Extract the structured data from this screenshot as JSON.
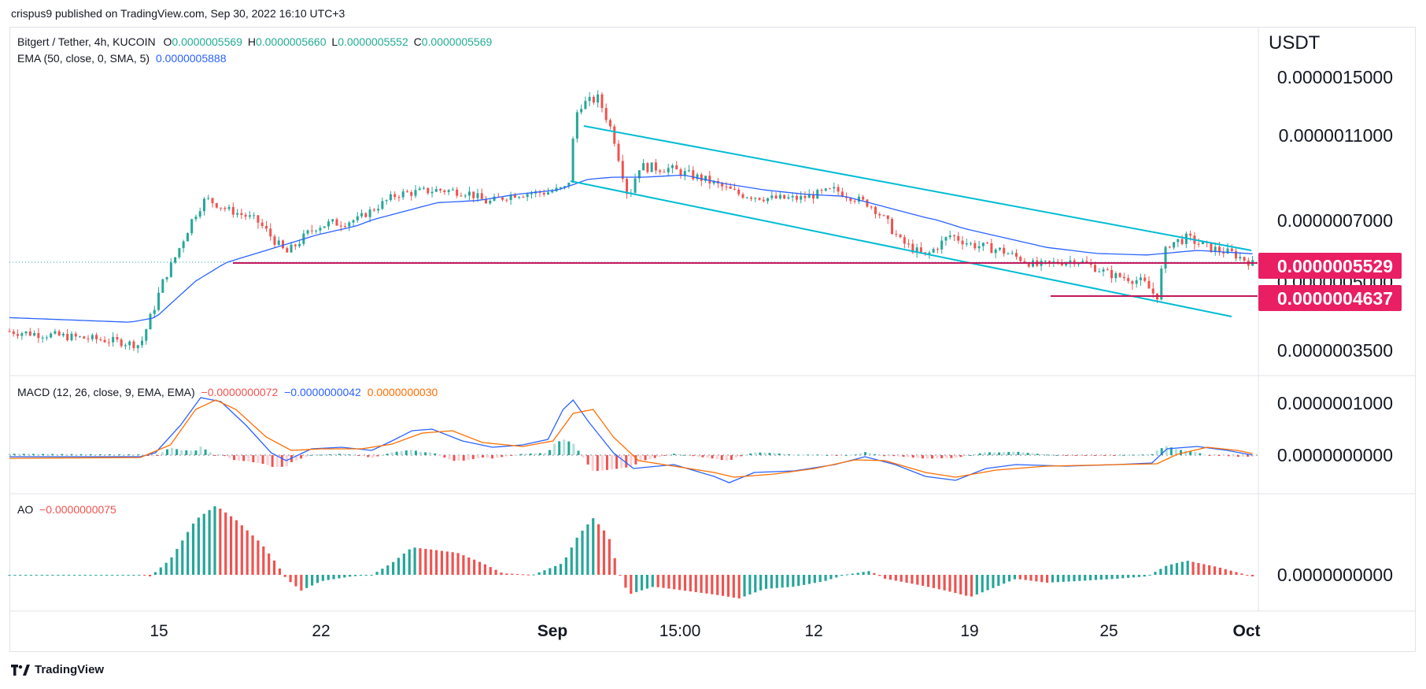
{
  "header": {
    "published_text": "crispus9 published on TradingView.com, Sep 30, 2022 16:10 UTC+3"
  },
  "footer": {
    "brand": "TradingView"
  },
  "legend": {
    "symbol": "Bitgert / Tether, 4h, KUCOIN",
    "o_label": "O",
    "o_value": "0.0000005569",
    "h_label": "H",
    "h_value": "0.0000005660",
    "l_label": "L",
    "l_value": "0.0000005552",
    "c_label": "C",
    "c_value": "0.0000005569",
    "ema_label": "EMA (50, close, 0, SMA, 5)",
    "ema_value": "0.0000005888",
    "macd_label": "MACD (12, 26, close, 9, EMA, EMA)",
    "macd_hist": "−0.0000000072",
    "macd_line": "−0.0000000042",
    "macd_signal": "0.0000000030",
    "ao_label": "AO",
    "ao_value": "−0.0000000075"
  },
  "colors": {
    "up": "#26a69a",
    "down": "#ef5350",
    "ema": "#2962ff",
    "channel": "#00bcd4",
    "hline": "#c2185b",
    "tag": "#e91e63",
    "macd_line": "#2962ff",
    "signal_line": "#ff6d00"
  },
  "chart_data": {
    "type": "candlestick",
    "title": "Bitgert / Tether, 4h, KUCOIN",
    "currency": "USDT",
    "y_tick_labels": [
      "0.0000015000",
      "0.0000011000",
      "0.0000007000",
      "0.0000005000",
      "0.0000003500"
    ],
    "x_tick_labels": [
      "15",
      "22",
      "Sep",
      "15:00",
      "12",
      "19",
      "25",
      "Oct"
    ],
    "price_tags": [
      "0.0000005529",
      "0.0000004637"
    ],
    "horizontal_levels": [
      5.529e-07,
      4.637e-07
    ],
    "price_path": [
      [
        0.0,
        3.9e-07
      ],
      [
        0.1,
        3.7e-07
      ],
      [
        0.13,
        3.6e-07
      ],
      [
        0.145,
        4.5e-07
      ],
      [
        0.165,
        5.8e-07
      ],
      [
        0.195,
        8e-07
      ],
      [
        0.215,
        7.5e-07
      ],
      [
        0.245,
        7e-07
      ],
      [
        0.275,
        5.9e-07
      ],
      [
        0.305,
        6.8e-07
      ],
      [
        0.345,
        7e-07
      ],
      [
        0.385,
        8.2e-07
      ],
      [
        0.425,
        8.4e-07
      ],
      [
        0.455,
        8.3e-07
      ],
      [
        0.475,
        7.8e-07
      ],
      [
        0.5,
        8.2e-07
      ],
      [
        0.535,
        8.3e-07
      ],
      [
        0.555,
        8.5e-07
      ],
      [
        0.565,
        1.3e-06
      ],
      [
        0.585,
        1.35e-06
      ],
      [
        0.6,
        1.1e-06
      ],
      [
        0.615,
        8e-07
      ],
      [
        0.625,
        9.5e-07
      ],
      [
        0.655,
        9.4e-07
      ],
      [
        0.69,
        8.9e-07
      ],
      [
        0.725,
        8.2e-07
      ],
      [
        0.755,
        8e-07
      ],
      [
        0.785,
        8e-07
      ],
      [
        0.82,
        8.4e-07
      ],
      [
        0.855,
        7.7e-07
      ],
      [
        0.885,
        6.3e-07
      ],
      [
        0.91,
        5.8e-07
      ],
      [
        0.935,
        6.5e-07
      ],
      [
        0.955,
        6.2e-07
      ],
      [
        0.985,
        6e-07
      ],
      [
        1.02,
        5.5e-07
      ],
      [
        1.06,
        5.7e-07
      ],
      [
        1.095,
        5.2e-07
      ],
      [
        1.125,
        5e-07
      ],
      [
        1.14,
        4.65e-07
      ],
      [
        1.15,
        6.2e-07
      ],
      [
        1.17,
        6.4e-07
      ],
      [
        1.19,
        6.1e-07
      ],
      [
        1.215,
        5.9e-07
      ],
      [
        1.235,
        5.57e-07
      ]
    ],
    "ema_path": [
      [
        0.0,
        4.2e-07
      ],
      [
        0.12,
        4.1e-07
      ],
      [
        0.145,
        4.2e-07
      ],
      [
        0.185,
        5e-07
      ],
      [
        0.215,
        5.6e-07
      ],
      [
        0.255,
        6e-07
      ],
      [
        0.305,
        6.5e-07
      ],
      [
        0.345,
        6.8e-07
      ],
      [
        0.385,
        7.3e-07
      ],
      [
        0.425,
        7.8e-07
      ],
      [
        0.465,
        7.9e-07
      ],
      [
        0.505,
        8.2e-07
      ],
      [
        0.545,
        8.4e-07
      ],
      [
        0.575,
        8.9e-07
      ],
      [
        0.6,
        9e-07
      ],
      [
        0.63,
        9e-07
      ],
      [
        0.67,
        9.1e-07
      ],
      [
        0.71,
        8.7e-07
      ],
      [
        0.75,
        8.4e-07
      ],
      [
        0.79,
        8.2e-07
      ],
      [
        0.83,
        8.1e-07
      ],
      [
        0.87,
        7.6e-07
      ],
      [
        0.91,
        7.1e-07
      ],
      [
        0.95,
        6.7e-07
      ],
      [
        0.99,
        6.4e-07
      ],
      [
        1.03,
        6.1e-07
      ],
      [
        1.08,
        5.9e-07
      ],
      [
        1.13,
        5.85e-07
      ],
      [
        1.18,
        6e-07
      ],
      [
        1.235,
        5.89e-07
      ]
    ],
    "macd": {
      "zero": 0,
      "tick_labels": [
        "0.0000001000",
        "0.0000000000"
      ]
    },
    "ao": {
      "tick_labels": [
        "0.0000000000"
      ]
    }
  }
}
